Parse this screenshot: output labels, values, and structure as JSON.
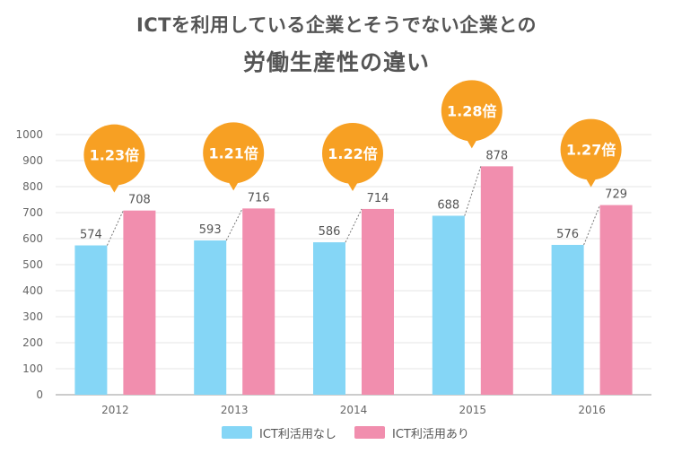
{
  "header": {
    "title_line1": "ICTを利用している企業とそうでない企業との",
    "title_line2": "労働生産性の違い"
  },
  "colors": {
    "without_ict": "#85d6f6",
    "with_ict": "#f18eae",
    "ratio_bubble": "#f7a023",
    "axis_text": "#666666",
    "grid": "#e6e6e6"
  },
  "chart_data": {
    "type": "bar",
    "title": "ICTを利用している企業とそうでない企業との 労働生産性の違い",
    "categories": [
      "2012",
      "2013",
      "2014",
      "2015",
      "2016"
    ],
    "series": [
      {
        "name": "ICT利活用なし",
        "values": [
          574,
          593,
          586,
          688,
          576
        ]
      },
      {
        "name": "ICT利活用あり",
        "values": [
          708,
          716,
          714,
          878,
          729
        ]
      }
    ],
    "ratios": [
      "1.23倍",
      "1.21倍",
      "1.22倍",
      "1.28倍",
      "1.27倍"
    ],
    "ylim": [
      0,
      1000
    ],
    "yticks": [
      0,
      100,
      200,
      300,
      400,
      500,
      600,
      700,
      800,
      900,
      1000
    ],
    "grid": true,
    "legend_position": "bottom"
  }
}
